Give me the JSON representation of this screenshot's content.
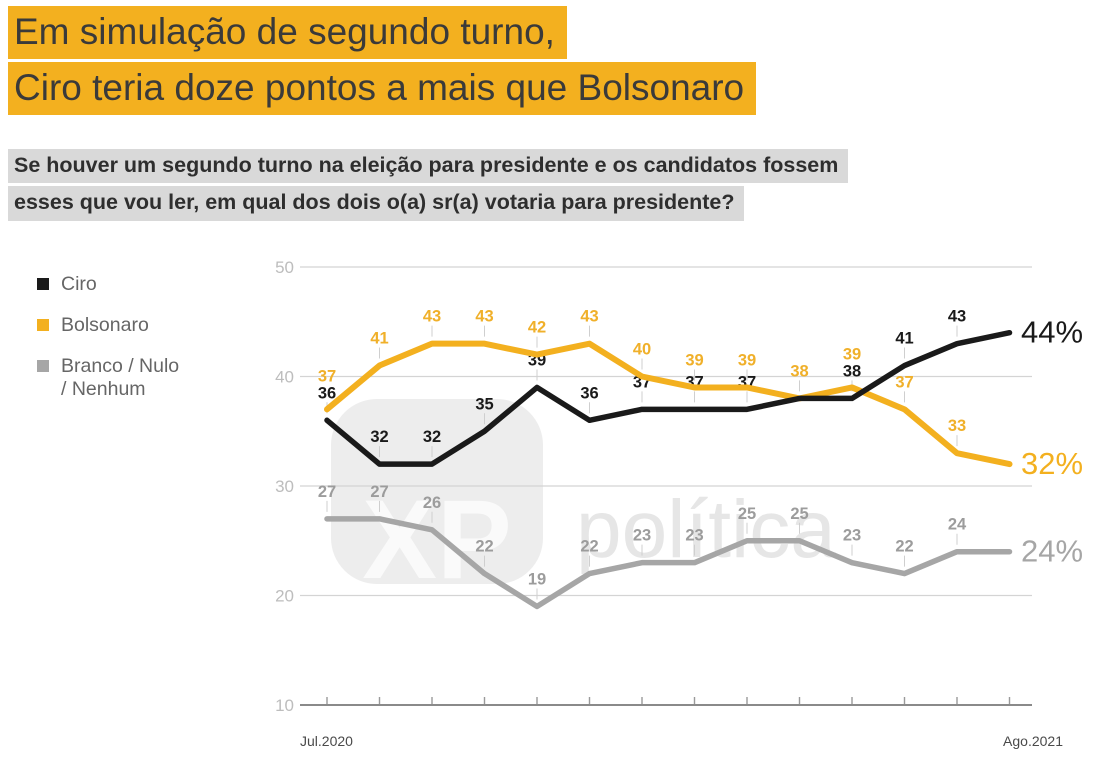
{
  "title": {
    "line1": "Em simulação de segundo turno,",
    "line2": "Ciro teria doze pontos a mais que Bolsonaro",
    "highlight_color": "#F3B01F",
    "text_color": "#3A3A3A"
  },
  "subtitle": {
    "line1": "Se houver um segundo turno na eleição para presidente e os candidatos fossem",
    "line2": "esses que vou ler, em qual dos dois o(a) sr(a) votaria para presidente?",
    "highlight_color": "#D9D9D9",
    "text_color": "#2E2E2E"
  },
  "legend": {
    "items": [
      {
        "label": "Ciro",
        "lines": [
          "Ciro"
        ],
        "color": "#1A1A1A"
      },
      {
        "label": "Bolsonaro",
        "lines": [
          "Bolsonaro"
        ],
        "color": "#F3B01F"
      },
      {
        "label": "Branco / Nulo / Nenhum",
        "lines": [
          "Branco / Nulo",
          "/ Nenhum"
        ],
        "color": "#A6A6A6"
      }
    ]
  },
  "watermark": {
    "logo_text": "XP",
    "brand_text": "política"
  },
  "chart_data": {
    "type": "line",
    "title": "Simulação de segundo turno: Ciro x Bolsonaro",
    "x_axis": {
      "first_label": "Jul.2020",
      "last_label": "Ago.2021",
      "n_points": 14
    },
    "y_axis": {
      "min": 10,
      "max": 50,
      "ticks": [
        50,
        40,
        30,
        20,
        10
      ]
    },
    "grid": true,
    "legend_position": "left",
    "series": [
      {
        "name": "Ciro",
        "color": "#1A1A1A",
        "label_color": "#1A1A1A",
        "values": [
          36,
          32,
          32,
          35,
          39,
          36,
          37,
          37,
          37,
          38,
          38,
          41,
          43,
          44
        ],
        "end_label": "44%"
      },
      {
        "name": "Bolsonaro",
        "color": "#F3B01F",
        "label_color": "#F0B02A",
        "values": [
          37,
          41,
          43,
          43,
          42,
          43,
          40,
          39,
          39,
          38,
          39,
          37,
          33,
          32
        ],
        "end_label": "32%"
      },
      {
        "name": "Branco / Nulo / Nenhum",
        "color": "#A6A6A6",
        "label_color": "#9C9C9C",
        "values": [
          27,
          27,
          26,
          22,
          19,
          22,
          23,
          23,
          25,
          25,
          23,
          22,
          24,
          24
        ],
        "end_label": "24%"
      }
    ]
  }
}
